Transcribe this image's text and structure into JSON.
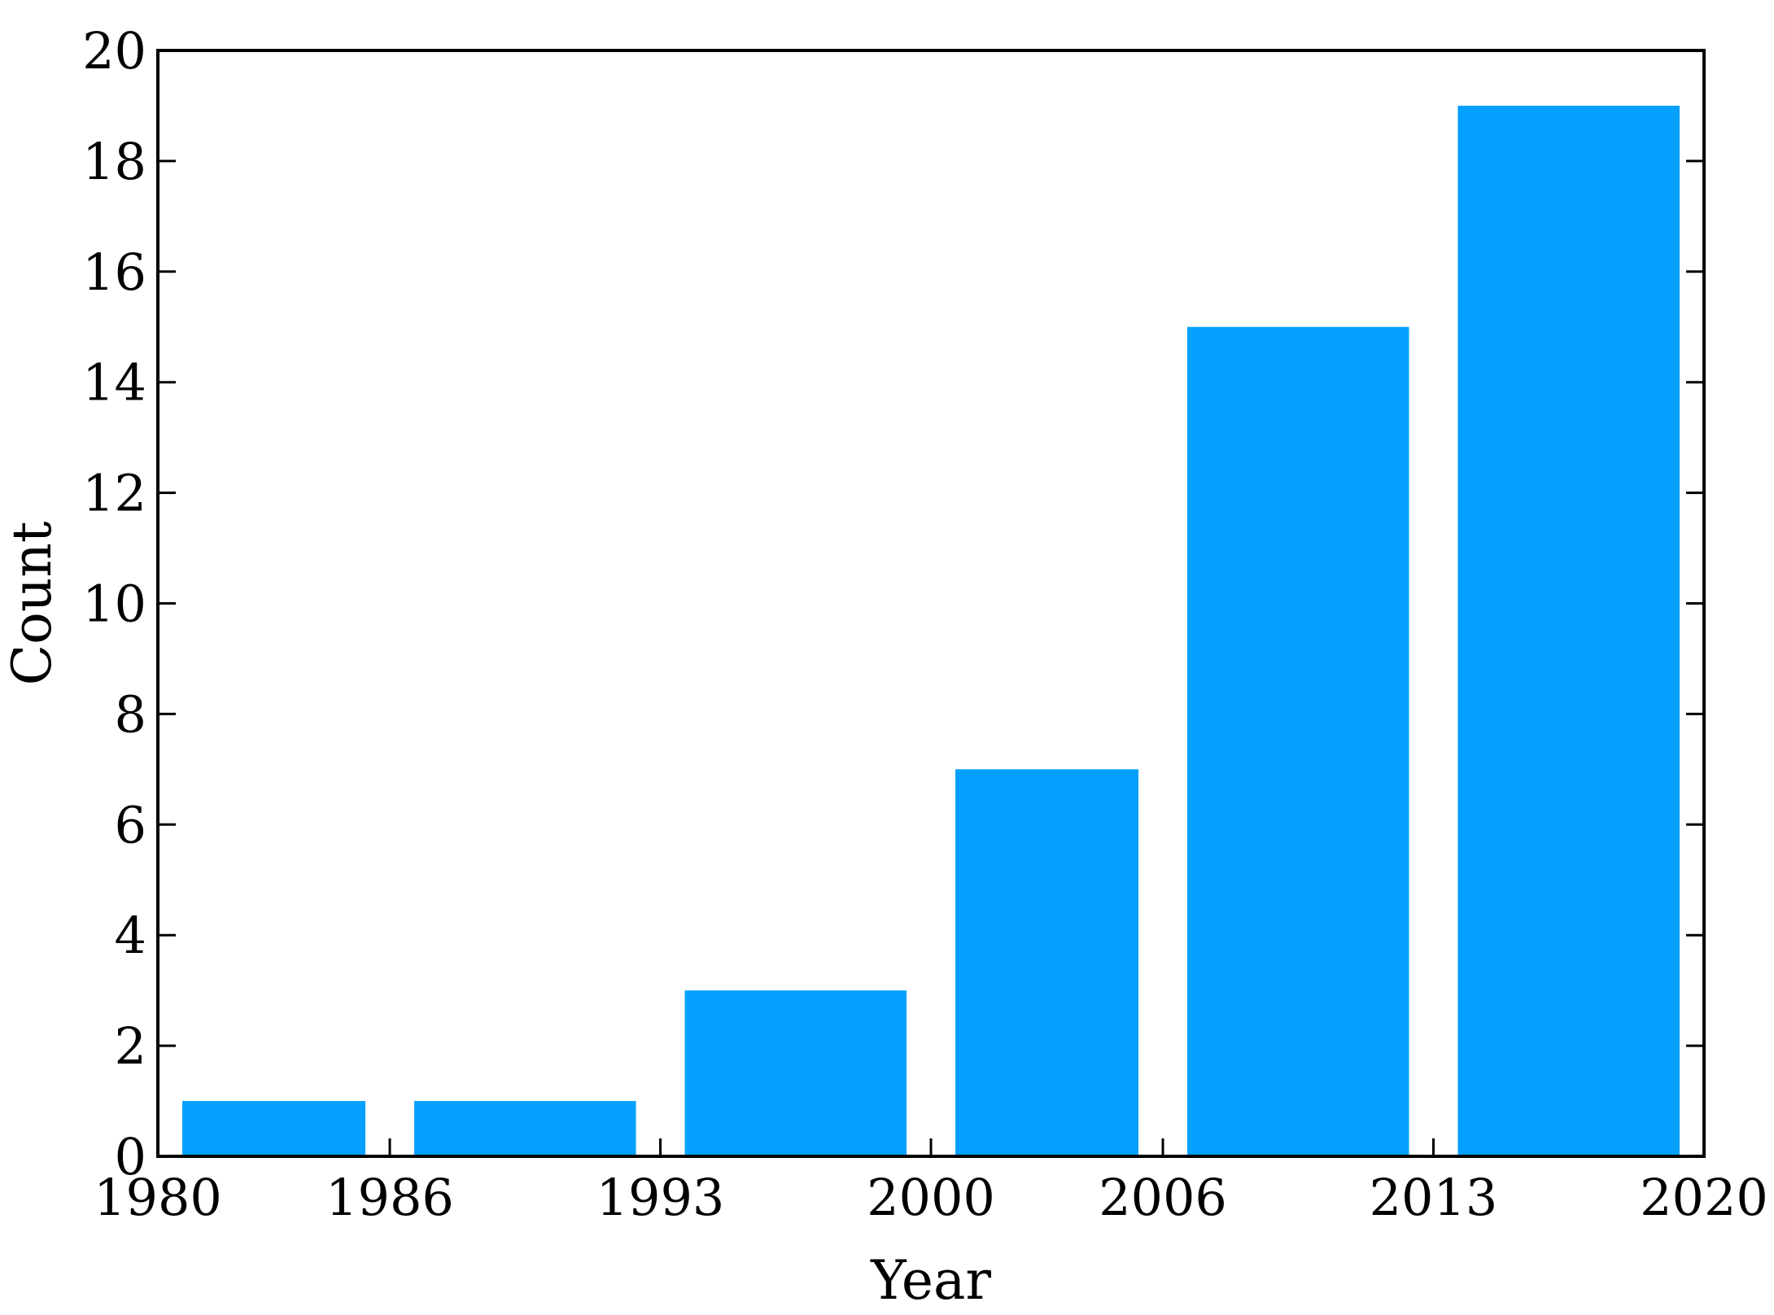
{
  "chart_data": {
    "type": "bar",
    "xlabel": "Year",
    "ylabel": "Count",
    "x_ticks": [
      "1980",
      "1986",
      "1993",
      "2000",
      "2006",
      "2013",
      "2020"
    ],
    "bins": [
      {
        "start": 1980,
        "end": 1986,
        "value": 1
      },
      {
        "start": 1986,
        "end": 1993,
        "value": 1
      },
      {
        "start": 1993,
        "end": 2000,
        "value": 3
      },
      {
        "start": 2000,
        "end": 2006,
        "value": 7
      },
      {
        "start": 2006,
        "end": 2013,
        "value": 15
      },
      {
        "start": 2013,
        "end": 2020,
        "value": 19
      }
    ],
    "xlim": [
      1980,
      2020
    ],
    "ylim": [
      0,
      20
    ],
    "y_ticks": [
      0,
      2,
      4,
      6,
      8,
      10,
      12,
      14,
      16,
      18,
      20
    ],
    "grid": false,
    "legend": "none",
    "bar_color": "#03a0fd",
    "axis_color": "#000000"
  }
}
